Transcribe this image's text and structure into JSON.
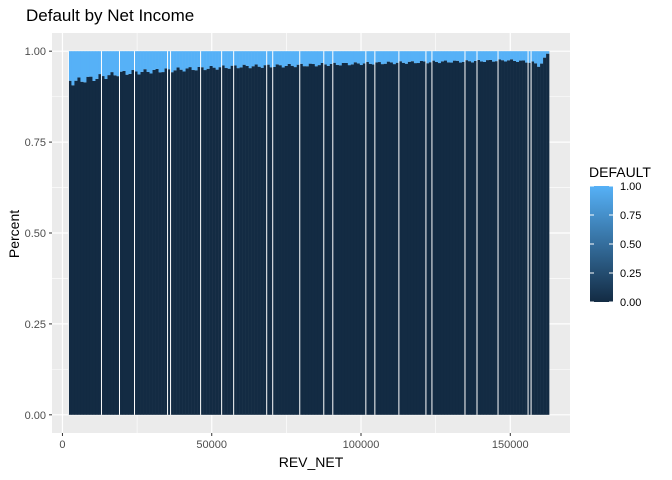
{
  "chart_data": {
    "type": "bar",
    "title": "Default by Net Income",
    "xlabel": "REV_NET",
    "ylabel": "Percent",
    "xlim": [
      -3500,
      170000
    ],
    "ylim": [
      -0.05,
      1.05
    ],
    "x_ticks": [
      0,
      50000,
      100000,
      150000
    ],
    "x_tick_labels": [
      "0",
      "50000",
      "100000",
      "150000"
    ],
    "y_ticks": [
      0,
      0.25,
      0.5,
      0.75,
      1.0
    ],
    "y_tick_labels": [
      "0.00",
      "0.25",
      "0.50",
      "0.75",
      "1.00"
    ],
    "grid": true,
    "bars": {
      "x_start": 2000,
      "x_end": 163000,
      "count": 160,
      "default_share_knots": [
        [
          2000,
          0.08
        ],
        [
          4000,
          0.085
        ],
        [
          6000,
          0.08
        ],
        [
          10000,
          0.075
        ],
        [
          20000,
          0.06
        ],
        [
          30000,
          0.055
        ],
        [
          45000,
          0.048
        ],
        [
          60000,
          0.042
        ],
        [
          75000,
          0.04
        ],
        [
          90000,
          0.036
        ],
        [
          105000,
          0.033
        ],
        [
          120000,
          0.03
        ],
        [
          135000,
          0.028
        ],
        [
          150000,
          0.025
        ],
        [
          157000,
          0.03
        ],
        [
          160000,
          0.04
        ],
        [
          161500,
          0.02
        ],
        [
          163000,
          0.0
        ]
      ]
    },
    "legend": {
      "title": "DEFAULT",
      "placement": "right",
      "breaks": [
        1.0,
        0.75,
        0.5,
        0.25,
        0.0
      ],
      "labels": [
        "1.00",
        "0.75",
        "0.50",
        "0.25",
        "0.00"
      ],
      "low_color": "#132B43",
      "high_color": "#56B1F7"
    },
    "panel_bg": "#EBEBEB",
    "grid_color": "#FFFFFF"
  }
}
